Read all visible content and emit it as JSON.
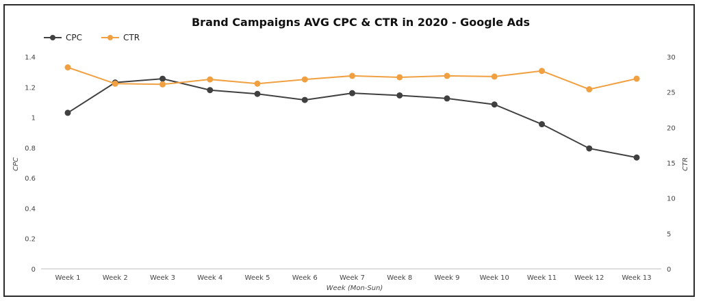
{
  "chart_data": {
    "type": "line",
    "title": "Brand Campaigns AVG CPC & CTR in 2020 - Google Ads",
    "xlabel": "Week (Mon-Sun)",
    "ylabel": "CPC",
    "y2label": "CTR",
    "categories": [
      "Week 1",
      "Week 2",
      "Week 3",
      "Week 4",
      "Week 5",
      "Week 6",
      "Week 7",
      "Week 8",
      "Week 9",
      "Week 10",
      "Week 11",
      "Week 12",
      "Week 13"
    ],
    "ylim": [
      0,
      1.4
    ],
    "y2lim": [
      0,
      30
    ],
    "yticks": [
      "0",
      "0.2",
      "0.4",
      "0.6",
      "0.8",
      "1",
      "1.2",
      "1.4"
    ],
    "y2ticks": [
      "0",
      "5",
      "10",
      "15",
      "20",
      "25",
      "30"
    ],
    "grid": false,
    "legend_position": "top-left",
    "series": [
      {
        "name": "CPC",
        "axis": "left",
        "color": "#404040",
        "values": [
          1.03,
          1.23,
          1.255,
          1.18,
          1.155,
          1.115,
          1.16,
          1.145,
          1.125,
          1.085,
          0.955,
          0.795,
          0.735
        ]
      },
      {
        "name": "CTR",
        "axis": "right",
        "color": "#F0A040",
        "values": [
          28.5,
          26.2,
          26.1,
          26.8,
          26.2,
          26.8,
          27.3,
          27.1,
          27.3,
          27.2,
          28.0,
          25.4,
          26.9
        ]
      }
    ]
  }
}
